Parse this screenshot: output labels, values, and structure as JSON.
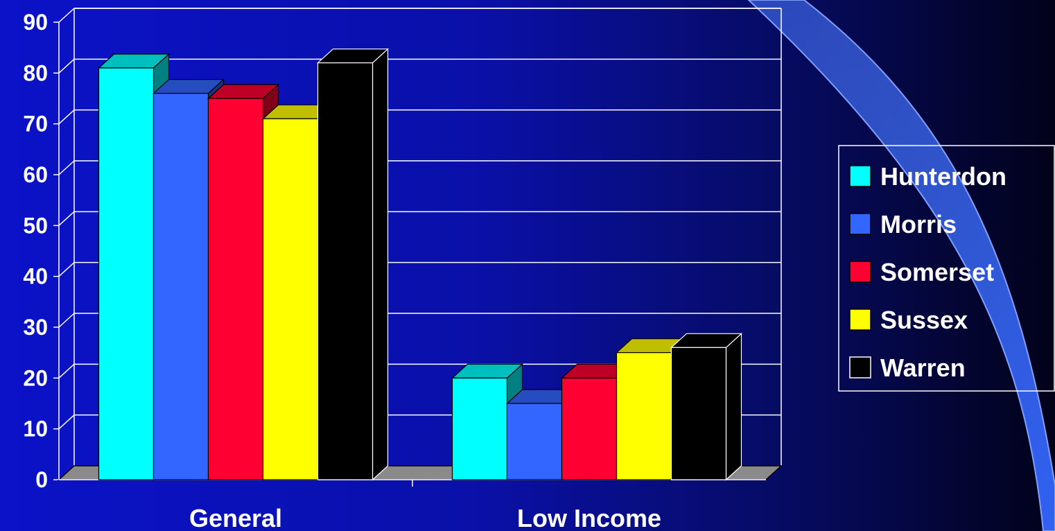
{
  "chart_data": {
    "type": "bar",
    "categories": [
      "General",
      "Low Income"
    ],
    "series": [
      {
        "name": "Hunterdon",
        "values": [
          81,
          20
        ],
        "color": "#00ffff"
      },
      {
        "name": "Morris",
        "values": [
          76,
          15
        ],
        "color": "#3366ff"
      },
      {
        "name": "Somerset",
        "values": [
          75,
          20
        ],
        "color": "#ff0033"
      },
      {
        "name": "Sussex",
        "values": [
          71,
          25
        ],
        "color": "#ffff00"
      },
      {
        "name": "Warren",
        "values": [
          82,
          26
        ],
        "color": "#000000"
      }
    ],
    "yticks": [
      "0",
      "10",
      "20",
      "30",
      "40",
      "50",
      "60",
      "70",
      "80",
      "90"
    ],
    "ylim": [
      0,
      90
    ],
    "grid": true,
    "legend_position": "right",
    "title": "",
    "xlabel": "",
    "ylabel": ""
  }
}
